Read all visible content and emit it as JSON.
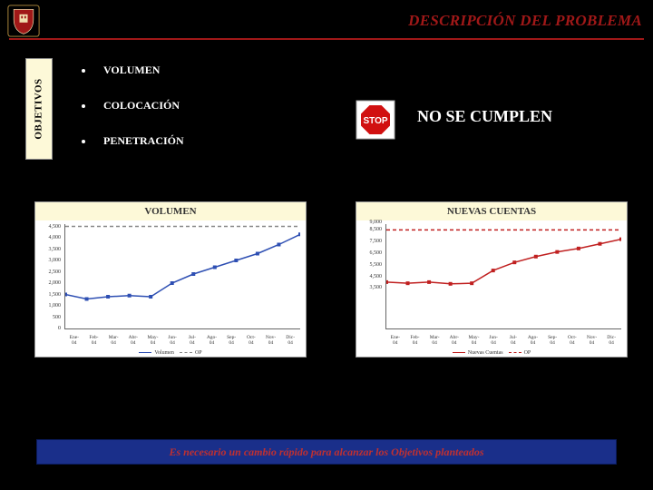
{
  "header": {
    "title": "DESCRIPCIÓN DEL PROBLEMA",
    "title_color": "#a01818",
    "rule_color": "#a01818"
  },
  "logo": {
    "shield_fill": "#a01818",
    "border": "#e8d8a8"
  },
  "objetivos": {
    "label": "OBJETIVOS",
    "bg": "#fdf9d8",
    "items": [
      {
        "text": "VOLUMEN"
      },
      {
        "text": "COLOCACIÓN"
      },
      {
        "text": "PENETRACIÓN"
      }
    ]
  },
  "stop": {
    "label": "STOP",
    "octagon_fill": "#d11010",
    "border": "#ffffff",
    "frame": "#cccccc"
  },
  "callout": {
    "text": "NO SE CUMPLEN",
    "color": "#ffffff"
  },
  "chart_left": {
    "type": "line",
    "title": "VOLUMEN",
    "title_bg": "#fdf9d8",
    "background_color": "#ffffff",
    "ylim": [
      0,
      4600
    ],
    "ytick_step": 500,
    "yticks": [
      0,
      500,
      1000,
      1500,
      2000,
      2500,
      3000,
      3500,
      4000,
      4500
    ],
    "x_categories": [
      "Ene-04",
      "Feb-04",
      "Mar-04",
      "Abr-04",
      "May-04",
      "Jun-04",
      "Jul-04",
      "Ago-04",
      "Sep-04",
      "Oct-04",
      "Nov-04",
      "Dic-04"
    ],
    "series": [
      {
        "name": "Volumen",
        "color": "#2e4fb3",
        "marker": "square",
        "dash": "none",
        "values": [
          1500,
          1300,
          1400,
          1450,
          1400,
          2000,
          2400,
          2700,
          3000,
          3300,
          3700,
          4150
        ]
      },
      {
        "name": "OP",
        "color": "#888888",
        "marker": "dash",
        "dash": "4,3",
        "values": [
          4500,
          4500,
          4500,
          4500,
          4500,
          4500,
          4500,
          4500,
          4500,
          4500,
          4500,
          4500
        ]
      }
    ],
    "label_fontsize": 6,
    "line_width": 1.5
  },
  "chart_right": {
    "type": "line",
    "title": "NUEVAS CUENTAS",
    "title_bg": "#fdf9d8",
    "background_color": "#ffffff",
    "ylim": [
      0,
      9000
    ],
    "ytick_step": 1000,
    "yticks": [
      3500,
      4500,
      5500,
      6500,
      7500,
      8500
    ],
    "y_extra_top_label": "9,000",
    "x_categories": [
      "Ene-04",
      "Feb-04",
      "Mar-04",
      "Abr-04",
      "May-04",
      "Jun-04",
      "Jul-04",
      "Ago-04",
      "Sep-04",
      "Oct-04",
      "Nov-04",
      "Dic-04"
    ],
    "series": [
      {
        "name": "Nuevas Cuentas",
        "color": "#c02020",
        "marker": "square",
        "dash": "none",
        "values": [
          4000,
          3900,
          4000,
          3850,
          3900,
          5000,
          5700,
          6200,
          6600,
          6900,
          7300,
          7700
        ]
      },
      {
        "name": "OP",
        "color": "#c02020",
        "marker": "dash",
        "dash": "4,3",
        "values": [
          8500,
          8500,
          8500,
          8500,
          8500,
          8500,
          8500,
          8500,
          8500,
          8500,
          8500,
          8500
        ]
      }
    ],
    "label_fontsize": 6,
    "line_width": 1.5
  },
  "footer": {
    "text": "Es necesario un cambio rápido para alcanzar los Objetivos planteados",
    "bg": "#1a2f8a",
    "text_color": "#c03030"
  }
}
